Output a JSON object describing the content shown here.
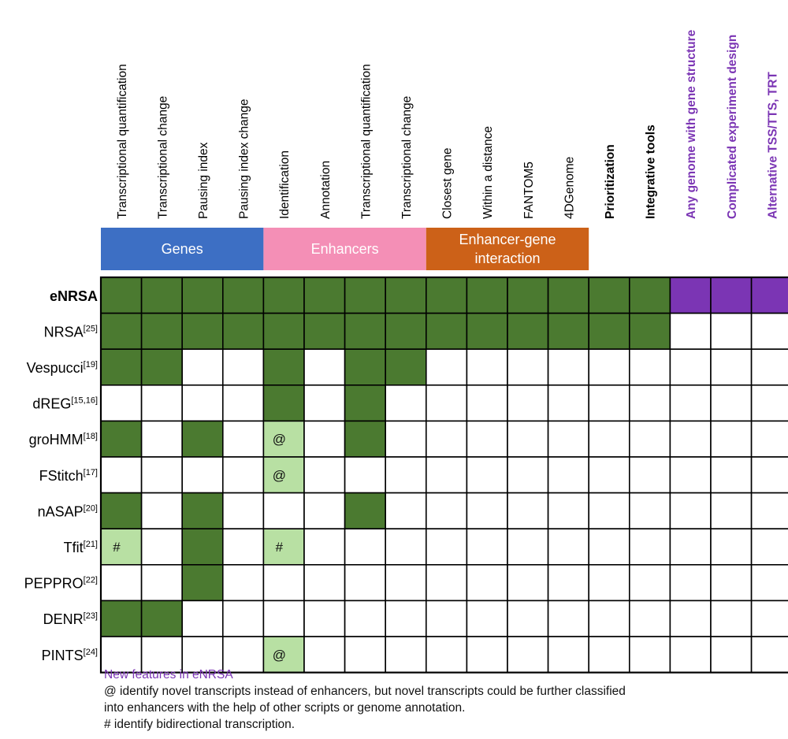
{
  "columns": [
    "Transcriptional quantification",
    "Transcriptional change",
    "Pausing index",
    "Pausing index change",
    "Identification",
    "Annotation",
    "Transcriptional quantification",
    "Transcriptional change",
    "Closest gene",
    "Within a distance",
    "FANTOM5",
    "4DGenome",
    "Prioritization",
    "Integrative tools",
    "Any genome with gene structure",
    "Complicated experiment design",
    "Alternative TSS/TTS, TRT"
  ],
  "groups": [
    {
      "label_lines": [
        "Genes"
      ],
      "start": 0,
      "span": 4,
      "color": "#3d6fc4"
    },
    {
      "label_lines": [
        "Enhancers"
      ],
      "start": 4,
      "span": 4,
      "color": "#f48fb6"
    },
    {
      "label_lines": [
        "Enhancer-gene",
        "interaction"
      ],
      "start": 8,
      "span": 4,
      "color": "#cc6118"
    }
  ],
  "rows": [
    {
      "name": "eNRSA",
      "ref": "",
      "bold": true,
      "cells": [
        "g",
        "g",
        "g",
        "g",
        "g",
        "g",
        "g",
        "g",
        "g",
        "g",
        "g",
        "g",
        "g",
        "g",
        "p",
        "p",
        "p"
      ]
    },
    {
      "name": "NRSA",
      "ref": "[25]",
      "cells": [
        "g",
        "g",
        "g",
        "g",
        "g",
        "g",
        "g",
        "g",
        "g",
        "g",
        "g",
        "g",
        "g",
        "g",
        "",
        "",
        ""
      ]
    },
    {
      "name": "Vespucci",
      "ref": "[19]",
      "cells": [
        "g",
        "g",
        "",
        "",
        "g",
        "",
        "g",
        "g",
        "",
        "",
        "",
        "",
        "",
        "",
        "",
        "",
        ""
      ]
    },
    {
      "name": "dREG",
      "ref": "[15,16]",
      "cells": [
        "",
        "",
        "",
        "",
        "g",
        "",
        "g",
        "",
        "",
        "",
        "",
        "",
        "",
        "",
        "",
        "",
        ""
      ]
    },
    {
      "name": "groHMM",
      "ref": "[18]",
      "cells": [
        "g",
        "",
        "g",
        "",
        "l@",
        "",
        "g",
        "",
        "",
        "",
        "",
        "",
        "",
        "",
        "",
        "",
        ""
      ]
    },
    {
      "name": "FStitch",
      "ref": "[17]",
      "cells": [
        "",
        "",
        "",
        "",
        "l@",
        "",
        "",
        "",
        "",
        "",
        "",
        "",
        "",
        "",
        "",
        "",
        ""
      ]
    },
    {
      "name": "nASAP",
      "ref": "[20]",
      "cells": [
        "g",
        "",
        "g",
        "",
        "",
        "",
        "g",
        "",
        "",
        "",
        "",
        "",
        "",
        "",
        "",
        "",
        ""
      ]
    },
    {
      "name": "Tfit",
      "ref": "[21]",
      "cells": [
        "l#",
        "",
        "g",
        "",
        "l#",
        "",
        "",
        "",
        "",
        "",
        "",
        "",
        "",
        "",
        "",
        "",
        ""
      ]
    },
    {
      "name": "PEPPRO",
      "ref": "[22]",
      "cells": [
        "",
        "",
        "g",
        "",
        "",
        "",
        "",
        "",
        "",
        "",
        "",
        "",
        "",
        "",
        "",
        "",
        ""
      ]
    },
    {
      "name": "DENR",
      "ref": "[23]",
      "cells": [
        "g",
        "g",
        "",
        "",
        "",
        "",
        "",
        "",
        "",
        "",
        "",
        "",
        "",
        "",
        "",
        "",
        ""
      ]
    },
    {
      "name": "PINTS",
      "ref": "[24]",
      "cells": [
        "",
        "",
        "",
        "",
        "l@",
        "",
        "",
        "",
        "",
        "",
        "",
        "",
        "",
        "",
        "",
        "",
        ""
      ]
    }
  ],
  "cell_legend": {
    "g": "#4b7a30",
    "p": "#7b35b4",
    "l": "#b8e0a3",
    "empty": "#ffffff"
  },
  "new_feature_color": "#7b35b4",
  "notes": {
    "new_features": "New features in eNRSA",
    "at_line1": "@ identify novel transcripts instead of enhancers, but novel transcripts could be further classified",
    "at_line2": "into enhancers with the help of other scripts or genome annotation.",
    "hash": "# identify bidirectional transcription."
  }
}
